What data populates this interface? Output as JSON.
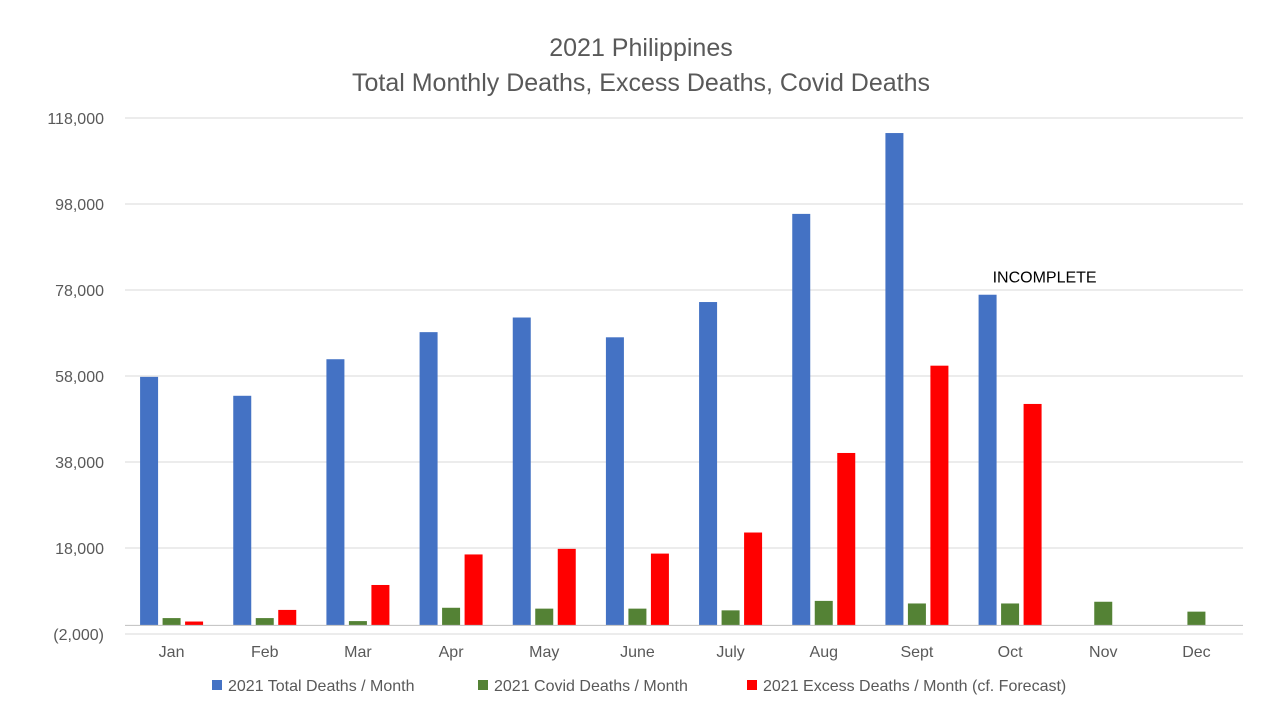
{
  "chart_data": {
    "type": "bar",
    "title": "2021 Philippines",
    "subtitle": "Total Monthly Deaths, Excess Deaths, Covid Deaths",
    "xlabel": "",
    "ylabel": "",
    "categories": [
      "Jan",
      "Feb",
      "Mar",
      "Apr",
      "May",
      "June",
      "July",
      "Aug",
      "Sept",
      "Oct",
      "Nov",
      "Dec"
    ],
    "ylim": [
      -2000,
      118000
    ],
    "yticks": [
      -2000,
      18000,
      38000,
      58000,
      78000,
      98000,
      118000
    ],
    "ytick_labels": [
      "(2,000)",
      "18,000",
      "38,000",
      "58,000",
      "78,000",
      "98,000",
      "118,000"
    ],
    "grid": true,
    "legend_position": "bottom",
    "series": [
      {
        "name": "2021 Total Deaths / Month",
        "color": "#4472C4",
        "values": [
          57800,
          53400,
          61900,
          68200,
          71600,
          67000,
          75200,
          95700,
          114500,
          76900,
          null,
          null
        ]
      },
      {
        "name": "2021 Covid Deaths / Month",
        "color": "#548235",
        "values": [
          1700,
          1700,
          1000,
          4100,
          3900,
          3900,
          3500,
          5700,
          5100,
          5100,
          5500,
          3200
        ]
      },
      {
        "name": "2021 Excess Deaths / Month (cf. Forecast)",
        "color": "#FF0000",
        "values": [
          900,
          3600,
          9400,
          16500,
          17800,
          16700,
          21600,
          40100,
          60400,
          51500,
          null,
          null
        ]
      }
    ],
    "annotations": [
      {
        "text": "INCOMPLETE",
        "category": "Oct"
      }
    ]
  }
}
